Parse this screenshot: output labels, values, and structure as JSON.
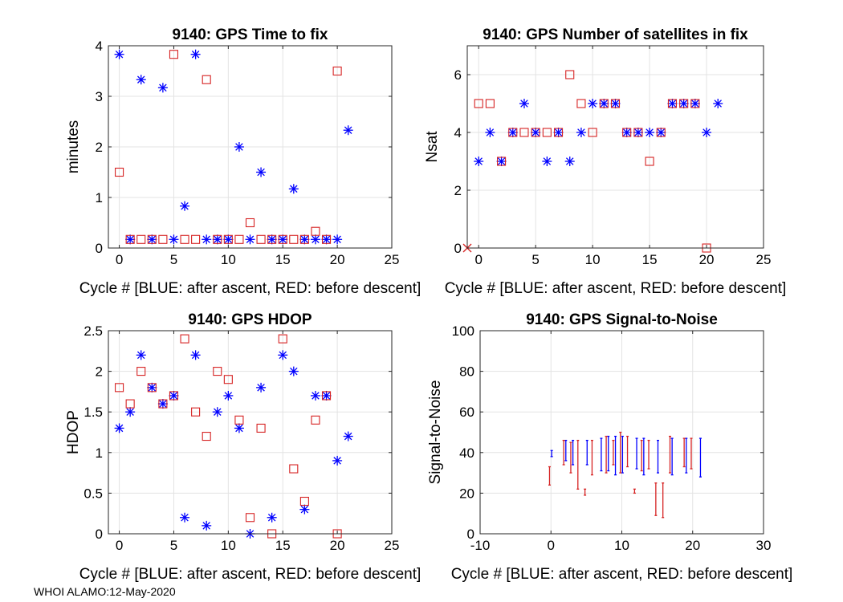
{
  "footer": "WHOI ALAMO:12-May-2020",
  "colors": {
    "blue": "#0000ff",
    "red": "#d62222",
    "grid": "#e3e3e3",
    "axis": "#262626"
  },
  "chart_data": [
    {
      "type": "scatter",
      "title": "9140: GPS Time to fix",
      "xlabel": "Cycle #  [BLUE: after ascent, RED: before descent]",
      "ylabel": "minutes",
      "xlim": [
        -1,
        25
      ],
      "ylim": [
        0,
        4
      ],
      "xticks": [
        0,
        5,
        10,
        15,
        20,
        25
      ],
      "yticks": [
        0,
        1,
        2,
        3,
        4
      ],
      "ytick_labels": [
        "0",
        "1",
        "2",
        "3",
        "4"
      ],
      "series": [
        {
          "name": "after ascent",
          "color": "blue",
          "marker": "asterisk",
          "x": [
            0,
            1,
            2,
            3,
            4,
            5,
            6,
            7,
            8,
            9,
            10,
            11,
            12,
            13,
            14,
            15,
            16,
            17,
            18,
            19,
            20,
            21
          ],
          "y": [
            3.83,
            0.17,
            3.33,
            0.17,
            3.17,
            0.17,
            0.83,
            3.83,
            0.17,
            0.17,
            0.17,
            2.0,
            0.17,
            1.5,
            0.17,
            0.17,
            1.17,
            0.17,
            0.17,
            0.17,
            0.17,
            2.33
          ]
        },
        {
          "name": "before descent",
          "color": "red",
          "marker": "square",
          "x": [
            0,
            1,
            2,
            3,
            4,
            5,
            6,
            7,
            8,
            9,
            10,
            11,
            12,
            13,
            14,
            15,
            16,
            17,
            18,
            19,
            20
          ],
          "y": [
            1.5,
            0.17,
            0.17,
            0.17,
            0.17,
            3.83,
            0.17,
            0.17,
            3.33,
            0.17,
            0.17,
            0.17,
            0.5,
            0.17,
            0.17,
            0.17,
            0.17,
            0.17,
            0.33,
            0.17,
            3.5
          ]
        }
      ]
    },
    {
      "type": "scatter",
      "title": "9140: GPS Number of satellites in fix",
      "xlabel": "Cycle #  [BLUE: after ascent, RED: before descent]",
      "ylabel": "Nsat",
      "xlim": [
        -1,
        25
      ],
      "ylim": [
        0,
        7
      ],
      "xticks": [
        0,
        5,
        10,
        15,
        20,
        25
      ],
      "yticks": [
        0,
        2,
        4,
        6
      ],
      "ytick_labels": [
        "0",
        "2",
        "4",
        "6"
      ],
      "series": [
        {
          "name": "after ascent",
          "color": "blue",
          "marker": "asterisk",
          "x": [
            0,
            1,
            2,
            3,
            4,
            5,
            6,
            7,
            8,
            9,
            10,
            11,
            12,
            13,
            14,
            15,
            16,
            17,
            18,
            19,
            20,
            21
          ],
          "y": [
            3,
            4,
            3,
            4,
            5,
            4,
            3,
            4,
            3,
            4,
            5,
            5,
            5,
            4,
            4,
            4,
            4,
            5,
            5,
            5,
            4,
            5
          ]
        },
        {
          "name": "before descent",
          "color": "red",
          "marker": "square",
          "x": [
            0,
            1,
            2,
            3,
            4,
            5,
            6,
            7,
            8,
            9,
            10,
            11,
            12,
            13,
            14,
            15,
            16,
            17,
            18,
            19,
            20
          ],
          "y": [
            5,
            5,
            3,
            4,
            4,
            4,
            4,
            4,
            6,
            5,
            4,
            5,
            5,
            4,
            4,
            3,
            4,
            5,
            5,
            5,
            0
          ]
        },
        {
          "name": "missing",
          "color": "red",
          "marker": "cross",
          "x": [
            -1
          ],
          "y": [
            0
          ]
        }
      ]
    },
    {
      "type": "scatter",
      "title": "9140: GPS HDOP",
      "xlabel": "Cycle #  [BLUE: after ascent, RED: before descent]",
      "ylabel": "HDOP",
      "xlim": [
        -1,
        25
      ],
      "ylim": [
        0,
        2.5
      ],
      "xticks": [
        0,
        5,
        10,
        15,
        20,
        25
      ],
      "yticks": [
        0,
        0.5,
        1,
        1.5,
        2,
        2.5
      ],
      "ytick_labels": [
        "0",
        "0.5",
        "1",
        "1.5",
        "2",
        "2.5"
      ],
      "series": [
        {
          "name": "after ascent",
          "color": "blue",
          "marker": "asterisk",
          "x": [
            0,
            1,
            2,
            3,
            4,
            5,
            6,
            7,
            8,
            9,
            10,
            11,
            12,
            13,
            14,
            15,
            16,
            17,
            18,
            19,
            20,
            21
          ],
          "y": [
            1.3,
            1.5,
            2.2,
            1.8,
            1.6,
            1.7,
            0.2,
            2.2,
            0.1,
            1.5,
            1.7,
            1.3,
            0.0,
            1.8,
            0.2,
            2.2,
            2.0,
            0.3,
            1.7,
            1.7,
            0.9,
            1.2
          ]
        },
        {
          "name": "before descent",
          "color": "red",
          "marker": "square",
          "x": [
            0,
            1,
            2,
            3,
            4,
            5,
            6,
            7,
            8,
            9,
            10,
            11,
            12,
            13,
            14,
            15,
            16,
            17,
            18,
            19,
            20
          ],
          "y": [
            1.8,
            1.6,
            2.0,
            1.8,
            1.6,
            1.7,
            2.4,
            1.5,
            1.2,
            2.0,
            1.9,
            1.4,
            0.2,
            1.3,
            0.0,
            2.4,
            0.8,
            0.4,
            1.4,
            1.7,
            0.0
          ]
        }
      ]
    },
    {
      "type": "errorbar",
      "title": "9140: GPS Signal-to-Noise",
      "xlabel": "Cycle #  [BLUE: after ascent, RED: before descent]",
      "ylabel": "Signal-to-Noise",
      "xlim": [
        -10,
        30
      ],
      "ylim": [
        0,
        100
      ],
      "xticks": [
        -10,
        0,
        10,
        20,
        30
      ],
      "yticks": [
        0,
        20,
        40,
        60,
        80,
        100
      ],
      "ytick_labels": [
        "0",
        "20",
        "40",
        "60",
        "80",
        "100"
      ],
      "series": [
        {
          "name": "after ascent",
          "color": "blue",
          "ranges": [
            [
              0.1,
              38,
              41
            ],
            [
              2.1,
              36,
              46
            ],
            [
              3.1,
              34,
              46
            ],
            [
              5.1,
              34,
              46
            ],
            [
              7.1,
              31,
              47
            ],
            [
              8.1,
              31,
              48
            ],
            [
              9.1,
              29,
              48
            ],
            [
              10.1,
              30,
              48
            ],
            [
              12.1,
              32,
              47
            ],
            [
              13.1,
              29,
              47
            ],
            [
              15.1,
              30,
              46
            ],
            [
              17.1,
              29,
              47
            ],
            [
              19.1,
              30,
              47
            ],
            [
              21.1,
              28,
              47
            ]
          ]
        },
        {
          "name": "before descent",
          "color": "red",
          "ranges": [
            [
              -0.2,
              24,
              33
            ],
            [
              1.8,
              34,
              46
            ],
            [
              2.8,
              30,
              45
            ],
            [
              3.8,
              22,
              46
            ],
            [
              4.8,
              19,
              22
            ],
            [
              5.8,
              29,
              46
            ],
            [
              7.8,
              30,
              48
            ],
            [
              8.8,
              34,
              46
            ],
            [
              9.8,
              30,
              50
            ],
            [
              10.8,
              33,
              48
            ],
            [
              11.8,
              20,
              22
            ],
            [
              12.8,
              31,
              46
            ],
            [
              13.8,
              32,
              46
            ],
            [
              14.8,
              9,
              25
            ],
            [
              15.8,
              8,
              25
            ],
            [
              16.8,
              30,
              48
            ],
            [
              18.8,
              33,
              47
            ],
            [
              19.8,
              32,
              47
            ]
          ]
        }
      ]
    }
  ]
}
